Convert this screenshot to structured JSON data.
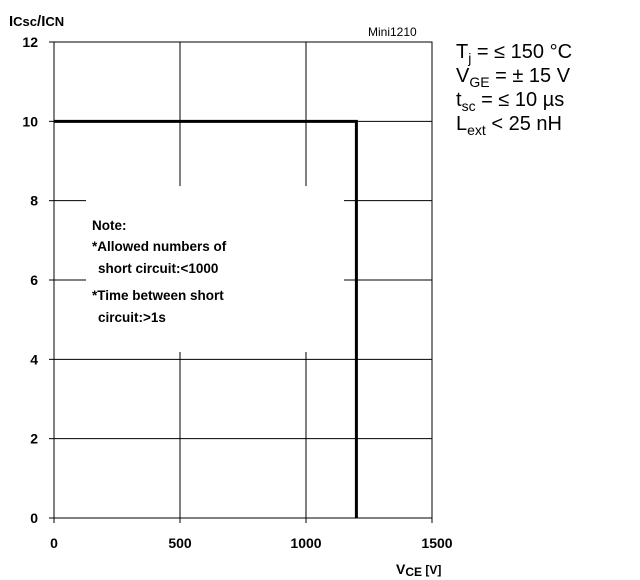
{
  "module_name": "Mini1210",
  "conditions": [
    {
      "sym": "T",
      "sub": "j",
      "rest": " = ≤ 150 °C"
    },
    {
      "sym": "V",
      "sub": "GE",
      "rest": " = ± 15 V"
    },
    {
      "sym": "t",
      "sub": "sc",
      "rest": " = ≤ 10 µs"
    },
    {
      "sym": "L",
      "sub": "ext",
      "rest": " < 25 nH"
    }
  ],
  "note_lines": [
    "Note:",
    "*Allowed  numbers of",
    "  short  circuit:<1000",
    "*Time between short",
    "  circuit:>1s"
  ],
  "chart_data": {
    "type": "line",
    "ylabel": {
      "base1": "I",
      "sub1": "Csc",
      "slash": "/",
      "base2": "I",
      "sub2": "CN"
    },
    "xlabel": {
      "base": "V",
      "sub": "CE",
      "unit": " [V]"
    },
    "xlim": [
      0,
      1500
    ],
    "ylim": [
      0,
      12
    ],
    "x_ticks": [
      0,
      500,
      1000,
      1500
    ],
    "y_ticks": [
      0,
      2,
      4,
      6,
      8,
      10,
      12
    ],
    "grid": true,
    "series": [
      {
        "values": [
          [
            0,
            10
          ],
          [
            1200,
            10
          ],
          [
            1200,
            0
          ]
        ]
      }
    ]
  }
}
